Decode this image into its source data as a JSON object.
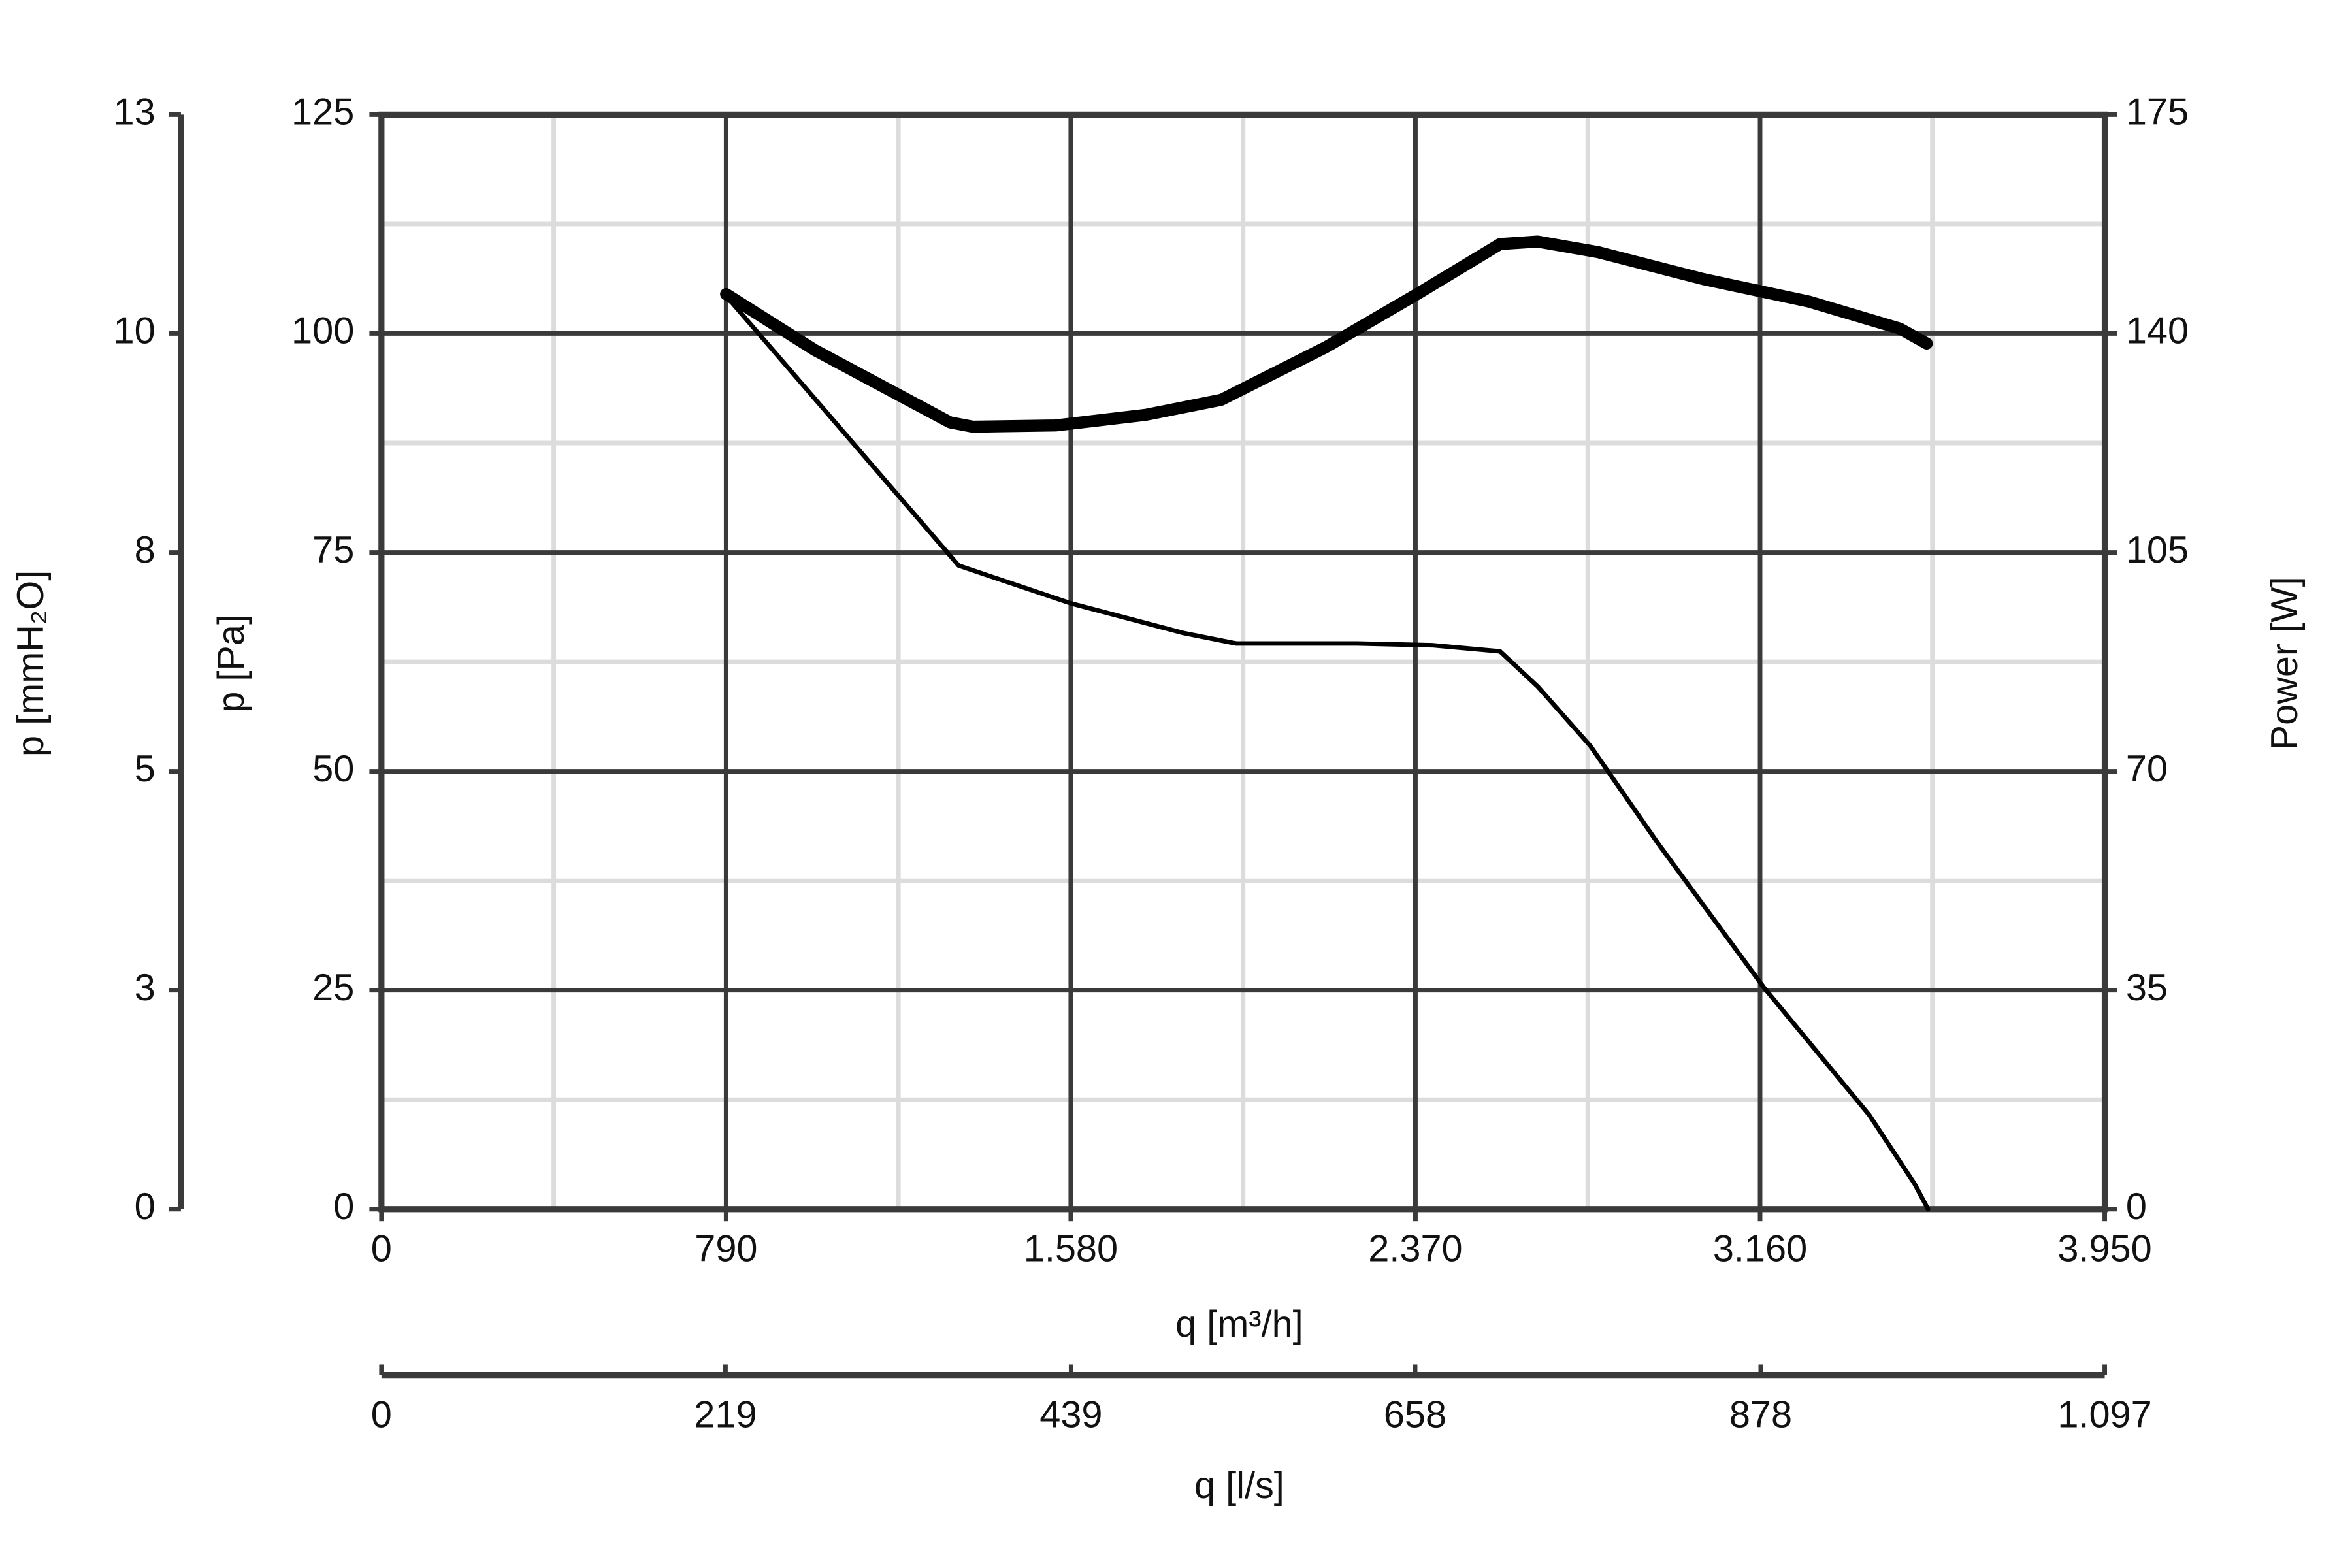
{
  "chart_data": {
    "type": "line",
    "xlabel": "q [m³/h]",
    "xlim": [
      0,
      3950
    ],
    "xticks": [
      0,
      790,
      {
        "value": 1580,
        "label": "1.580"
      },
      {
        "value": 2370,
        "label": "2.370"
      },
      {
        "value": 3160,
        "label": "3.160"
      },
      {
        "value": 3950,
        "label": "3.950"
      }
    ],
    "x2label": "q [l/s]",
    "x2lim": [
      0,
      1097
    ],
    "x2ticks": [
      0,
      219,
      439,
      658,
      878,
      {
        "value": 1097,
        "label": "1.097"
      }
    ],
    "ylabel": "p [Pa]",
    "ylim": [
      0,
      125
    ],
    "yticks": [
      0,
      25,
      50,
      75,
      100,
      125
    ],
    "y3label": "p [mmH₂O]",
    "y3lim": [
      0,
      12.75
    ],
    "y3ticks": [
      0,
      {
        "value": 2.55,
        "label": "3"
      },
      {
        "value": 5.1,
        "label": "5"
      },
      {
        "value": 7.65,
        "label": "8"
      },
      {
        "value": 10.2,
        "label": "10"
      },
      {
        "value": 12.75,
        "label": "13"
      }
    ],
    "y2label": "Power [W]",
    "y2lim": [
      0,
      175
    ],
    "y2ticks": [
      0,
      35,
      70,
      105,
      140,
      175
    ],
    "grid": true,
    "minor_grid": true,
    "series": [
      {
        "color": "#000000",
        "width": 3,
        "x": [
          790,
          1323,
          1579,
          1838,
          1959,
          2236,
          2408,
          2564,
          2650,
          2771,
          2927,
          3169,
          3411,
          3514,
          3545
        ],
        "values": [
          104.3,
          73.5,
          69.2,
          65.8,
          64.6,
          64.6,
          64.4,
          63.7,
          59.7,
          52.9,
          41.7,
          25.3,
          10.7,
          2.9,
          0
        ]
      },
      {
        "color": "#000000",
        "width": 8,
        "axis": "y2",
        "x": [
          790,
          992,
          1303,
          1355,
          1545,
          1752,
          1925,
          2167,
          2374,
          2564,
          2650,
          2789,
          3030,
          3272,
          3480,
          3542
        ],
        "values": [
          146.3,
          137.4,
          125.8,
          125.1,
          125.3,
          127.0,
          129.4,
          137.9,
          146.3,
          154.3,
          154.7,
          153.0,
          148.7,
          145.1,
          140.8,
          138.4
        ]
      }
    ]
  }
}
